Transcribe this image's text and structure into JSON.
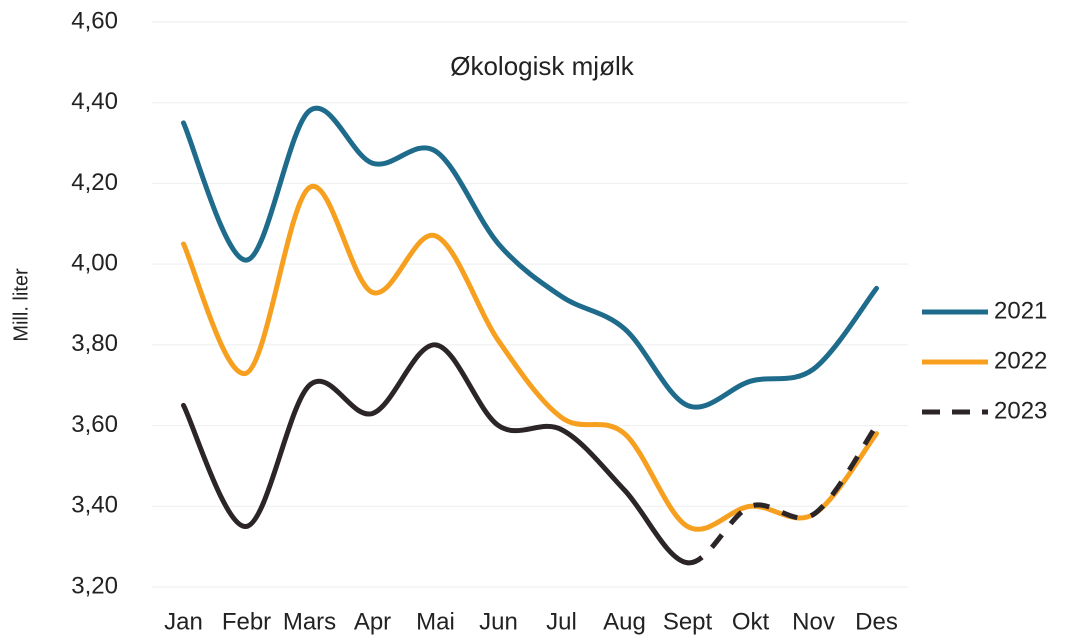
{
  "chart_data": {
    "type": "line",
    "title": "Økologisk mjølk",
    "y_label": "Mill. liter",
    "categories": [
      "Jan",
      "Febr",
      "Mars",
      "Apr",
      "Mai",
      "Jun",
      "Jul",
      "Aug",
      "Sept",
      "Okt",
      "Nov",
      "Des"
    ],
    "series": [
      {
        "name": "2021",
        "color": "#1f6b8c",
        "values": [
          4.35,
          4.01,
          4.38,
          4.25,
          4.28,
          4.05,
          3.92,
          3.84,
          3.65,
          3.71,
          3.74,
          3.94
        ]
      },
      {
        "name": "2022",
        "color": "#f7a020",
        "values": [
          4.05,
          3.73,
          4.19,
          3.93,
          4.07,
          3.81,
          3.62,
          3.58,
          3.35,
          3.4,
          3.38,
          3.58
        ]
      },
      {
        "name": "2023",
        "color": "#2b2527",
        "dashed_from_index": 8,
        "values": [
          3.65,
          3.35,
          3.7,
          3.63,
          3.8,
          3.6,
          3.59,
          3.44,
          3.26,
          3.4,
          3.38,
          3.6
        ]
      }
    ],
    "ylim": [
      3.2,
      4.6
    ],
    "yticks": [
      {
        "value": 3.2,
        "label": "3,20"
      },
      {
        "value": 3.4,
        "label": "3,40"
      },
      {
        "value": 3.6,
        "label": "3,60"
      },
      {
        "value": 3.8,
        "label": "3,80"
      },
      {
        "value": 4.0,
        "label": "4,00"
      },
      {
        "value": 4.2,
        "label": "4,20"
      },
      {
        "value": 4.4,
        "label": "4,40"
      },
      {
        "value": 4.6,
        "label": "4,60"
      }
    ],
    "grid": true,
    "legend": "right"
  }
}
